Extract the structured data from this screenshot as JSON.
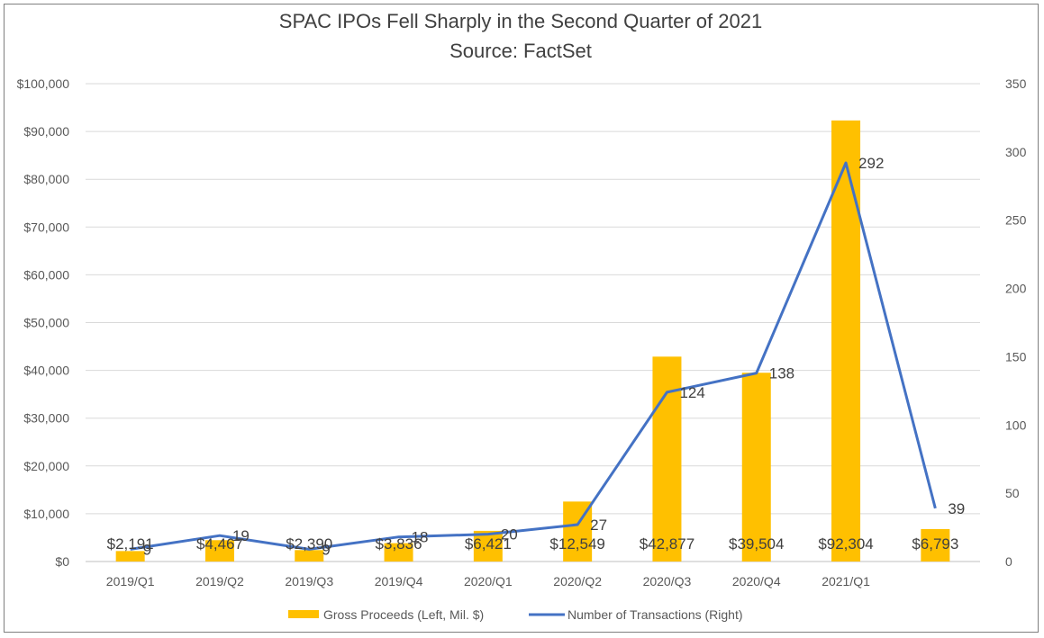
{
  "chart_data": {
    "type": "bar+line",
    "title": "SPAC IPOs Fell Sharply in the Second Quarter of 2021",
    "subtitle": "Source: FactSet",
    "categories": [
      "2019/Q1",
      "2019/Q2",
      "2019/Q3",
      "2019/Q4",
      "2020/Q1",
      "2020/Q2",
      "2020/Q3",
      "2020/Q4",
      "2021/Q1",
      ""
    ],
    "series": [
      {
        "name": "Gross Proceeds (Left, Mil. $)",
        "type": "bar",
        "axis": "left",
        "color": "#FFC000",
        "values": [
          2191,
          4467,
          2390,
          3836,
          6421,
          12549,
          42877,
          39504,
          92304,
          6793
        ],
        "labels": [
          "$2,191",
          "$4,467",
          "$2,390",
          "$3,836",
          "$6,421",
          "$12,549",
          "$42,877",
          "$39,504",
          "$92,304",
          "$6,793"
        ]
      },
      {
        "name": "Number of Transactions (Right)",
        "type": "line",
        "axis": "right",
        "color": "#4472C4",
        "values": [
          9,
          19,
          9,
          18,
          20,
          27,
          124,
          138,
          292,
          39
        ],
        "labels": [
          "9",
          "19",
          "9",
          "18",
          "20",
          "27",
          "124",
          "138",
          "292",
          "39"
        ]
      }
    ],
    "yleft": {
      "min": 0,
      "max": 100000,
      "step": 10000,
      "ticks": [
        "$0",
        "$10,000",
        "$20,000",
        "$30,000",
        "$40,000",
        "$50,000",
        "$60,000",
        "$70,000",
        "$80,000",
        "$90,000",
        "$100,000"
      ]
    },
    "yright": {
      "min": 0,
      "max": 350,
      "step": 50,
      "ticks": [
        "0",
        "50",
        "100",
        "150",
        "200",
        "250",
        "300",
        "350"
      ]
    },
    "grid": true,
    "legend": "bottom"
  }
}
